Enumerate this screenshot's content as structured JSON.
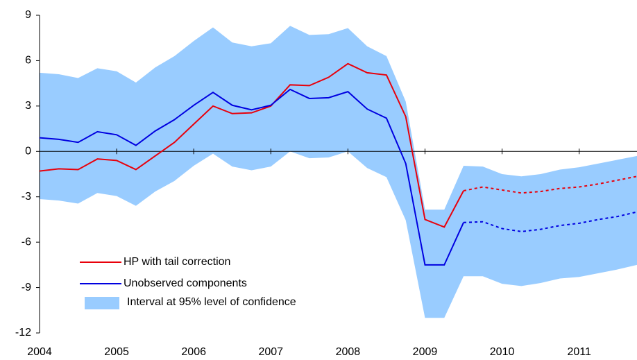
{
  "chart_data": {
    "type": "line",
    "x": [
      2004,
      2004.25,
      2004.5,
      2004.75,
      2005,
      2005.25,
      2005.5,
      2005.75,
      2006,
      2006.25,
      2006.5,
      2006.75,
      2007,
      2007.25,
      2007.5,
      2007.75,
      2008,
      2008.25,
      2008.5,
      2008.75,
      2009,
      2009.25,
      2009.5,
      2009.75,
      2010,
      2010.25,
      2010.5,
      2010.75,
      2011,
      2011.25,
      2011.5,
      2011.75
    ],
    "series": [
      {
        "name": "HP with tail correction",
        "color": "#e8000b",
        "dashed_from_x": 2009.5,
        "values": [
          -1.3,
          -1.15,
          -1.2,
          -0.5,
          -0.6,
          -1.2,
          -0.3,
          0.6,
          1.8,
          3.0,
          2.5,
          2.55,
          3.0,
          4.4,
          4.35,
          4.9,
          5.8,
          5.2,
          5.05,
          2.3,
          -4.5,
          -5.0,
          -2.6,
          -2.35,
          -2.55,
          -2.75,
          -2.65,
          -2.45,
          -2.35,
          -2.15,
          -1.9,
          -1.65
        ]
      },
      {
        "name": "Unobserved components",
        "color": "#0000e0",
        "dashed_from_x": 2009.5,
        "values": [
          0.9,
          0.8,
          0.6,
          1.3,
          1.1,
          0.4,
          1.35,
          2.1,
          3.05,
          3.9,
          3.05,
          2.75,
          3.05,
          4.1,
          3.5,
          3.55,
          3.95,
          2.8,
          2.2,
          -0.8,
          -7.5,
          -7.5,
          -4.7,
          -4.65,
          -5.1,
          -5.3,
          -5.15,
          -4.9,
          -4.75,
          -4.5,
          -4.3,
          -4.0
        ]
      }
    ],
    "band": {
      "name": "Interval at 95% level of confidence",
      "color": "#99ccff",
      "upper": [
        5.2,
        5.1,
        4.85,
        5.5,
        5.3,
        4.55,
        5.55,
        6.3,
        7.3,
        8.2,
        7.2,
        6.95,
        7.15,
        8.3,
        7.7,
        7.75,
        8.15,
        6.95,
        6.3,
        3.3,
        -3.85,
        -3.85,
        -0.95,
        -1.0,
        -1.5,
        -1.65,
        -1.5,
        -1.2,
        -1.05,
        -0.8,
        -0.55,
        -0.3
      ],
      "lower": [
        -3.15,
        -3.25,
        -3.45,
        -2.75,
        -2.95,
        -3.6,
        -2.65,
        -1.95,
        -0.95,
        -0.15,
        -1.0,
        -1.25,
        -1.0,
        0.0,
        -0.45,
        -0.4,
        0.0,
        -1.1,
        -1.7,
        -4.55,
        -11.0,
        -11.0,
        -8.25,
        -8.25,
        -8.75,
        -8.9,
        -8.7,
        -8.4,
        -8.3,
        -8.05,
        -7.8,
        -7.5
      ]
    },
    "xlim": [
      2004,
      2011.75
    ],
    "xticks": [
      2004,
      2005,
      2006,
      2007,
      2008,
      2009,
      2010,
      2011
    ],
    "ylim": [
      -12,
      9
    ],
    "yticks": [
      9,
      6,
      3,
      0,
      -3,
      -6,
      -9,
      -12
    ]
  }
}
